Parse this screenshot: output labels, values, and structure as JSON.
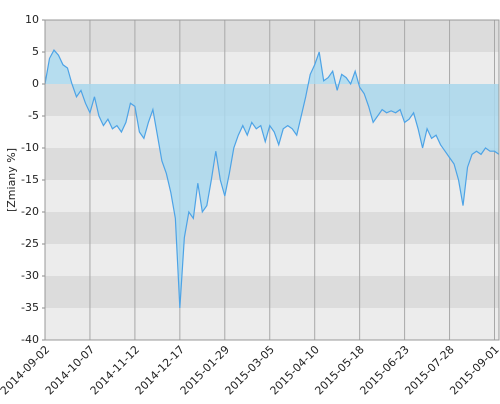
{
  "chart_data": {
    "type": "area",
    "y_label": "[Zmiany %]",
    "categories": [
      "2014-09-02",
      null,
      null,
      null,
      null,
      null,
      null,
      null,
      null,
      null,
      "2014-10-07",
      null,
      null,
      null,
      null,
      null,
      null,
      null,
      null,
      null,
      "2014-11-12",
      null,
      null,
      null,
      null,
      null,
      null,
      null,
      null,
      null,
      "2014-12-17",
      null,
      null,
      null,
      null,
      null,
      null,
      null,
      null,
      null,
      "2015-01-29",
      null,
      null,
      null,
      null,
      null,
      null,
      null,
      null,
      null,
      "2015-03-05",
      null,
      null,
      null,
      null,
      null,
      null,
      null,
      null,
      null,
      "2015-04-10",
      null,
      null,
      null,
      null,
      null,
      null,
      null,
      null,
      null,
      "2015-05-18",
      null,
      null,
      null,
      null,
      null,
      null,
      null,
      null,
      null,
      "2015-06-23",
      null,
      null,
      null,
      null,
      null,
      null,
      null,
      null,
      null,
      "2015-07-28",
      null,
      null,
      null,
      null,
      null,
      null,
      null,
      null,
      null,
      "2015-09-01",
      null
    ],
    "values": [
      0,
      4,
      5.3,
      4.5,
      3,
      2.5,
      0,
      -2,
      -1,
      -3,
      -4.5,
      -2,
      -5,
      -6.5,
      -5.5,
      -7,
      -6.5,
      -7.5,
      -6,
      -3,
      -3.5,
      -7.5,
      -8.5,
      -6,
      -4,
      -8,
      -12,
      -14,
      -17,
      -21,
      -35,
      -24,
      -20,
      -21,
      -15.5,
      -20,
      -19,
      -15,
      -10.5,
      -15,
      -17.5,
      -14,
      -10,
      -8,
      -6.5,
      -8,
      -6,
      -7,
      -6.5,
      -9,
      -6.5,
      -7.5,
      -9.5,
      -7,
      -6.5,
      -7,
      -8,
      -5,
      -2,
      1.5,
      3,
      5,
      0.5,
      1,
      2,
      -1,
      1.5,
      1,
      0,
      2,
      -0.5,
      -1.5,
      -3.5,
      -6,
      -5,
      -4,
      -4.5,
      -4.2,
      -4.5,
      -4,
      -6,
      -5.5,
      -4.5,
      -7,
      -10,
      -7,
      -8.5,
      -8,
      -9.5,
      -10.5,
      -11.5,
      -12.5,
      -15,
      -19,
      -13,
      -11,
      -10.5,
      -11,
      -10,
      -10.5,
      -10.5,
      -11
    ],
    "color": "#4da3e6",
    "fill_color": "#a9d9f0",
    "ylim": [
      -40,
      10
    ],
    "yticks": [
      -40,
      -35,
      -30,
      -25,
      -20,
      -15,
      -10,
      -5,
      0,
      5,
      10
    ],
    "grid": true
  }
}
